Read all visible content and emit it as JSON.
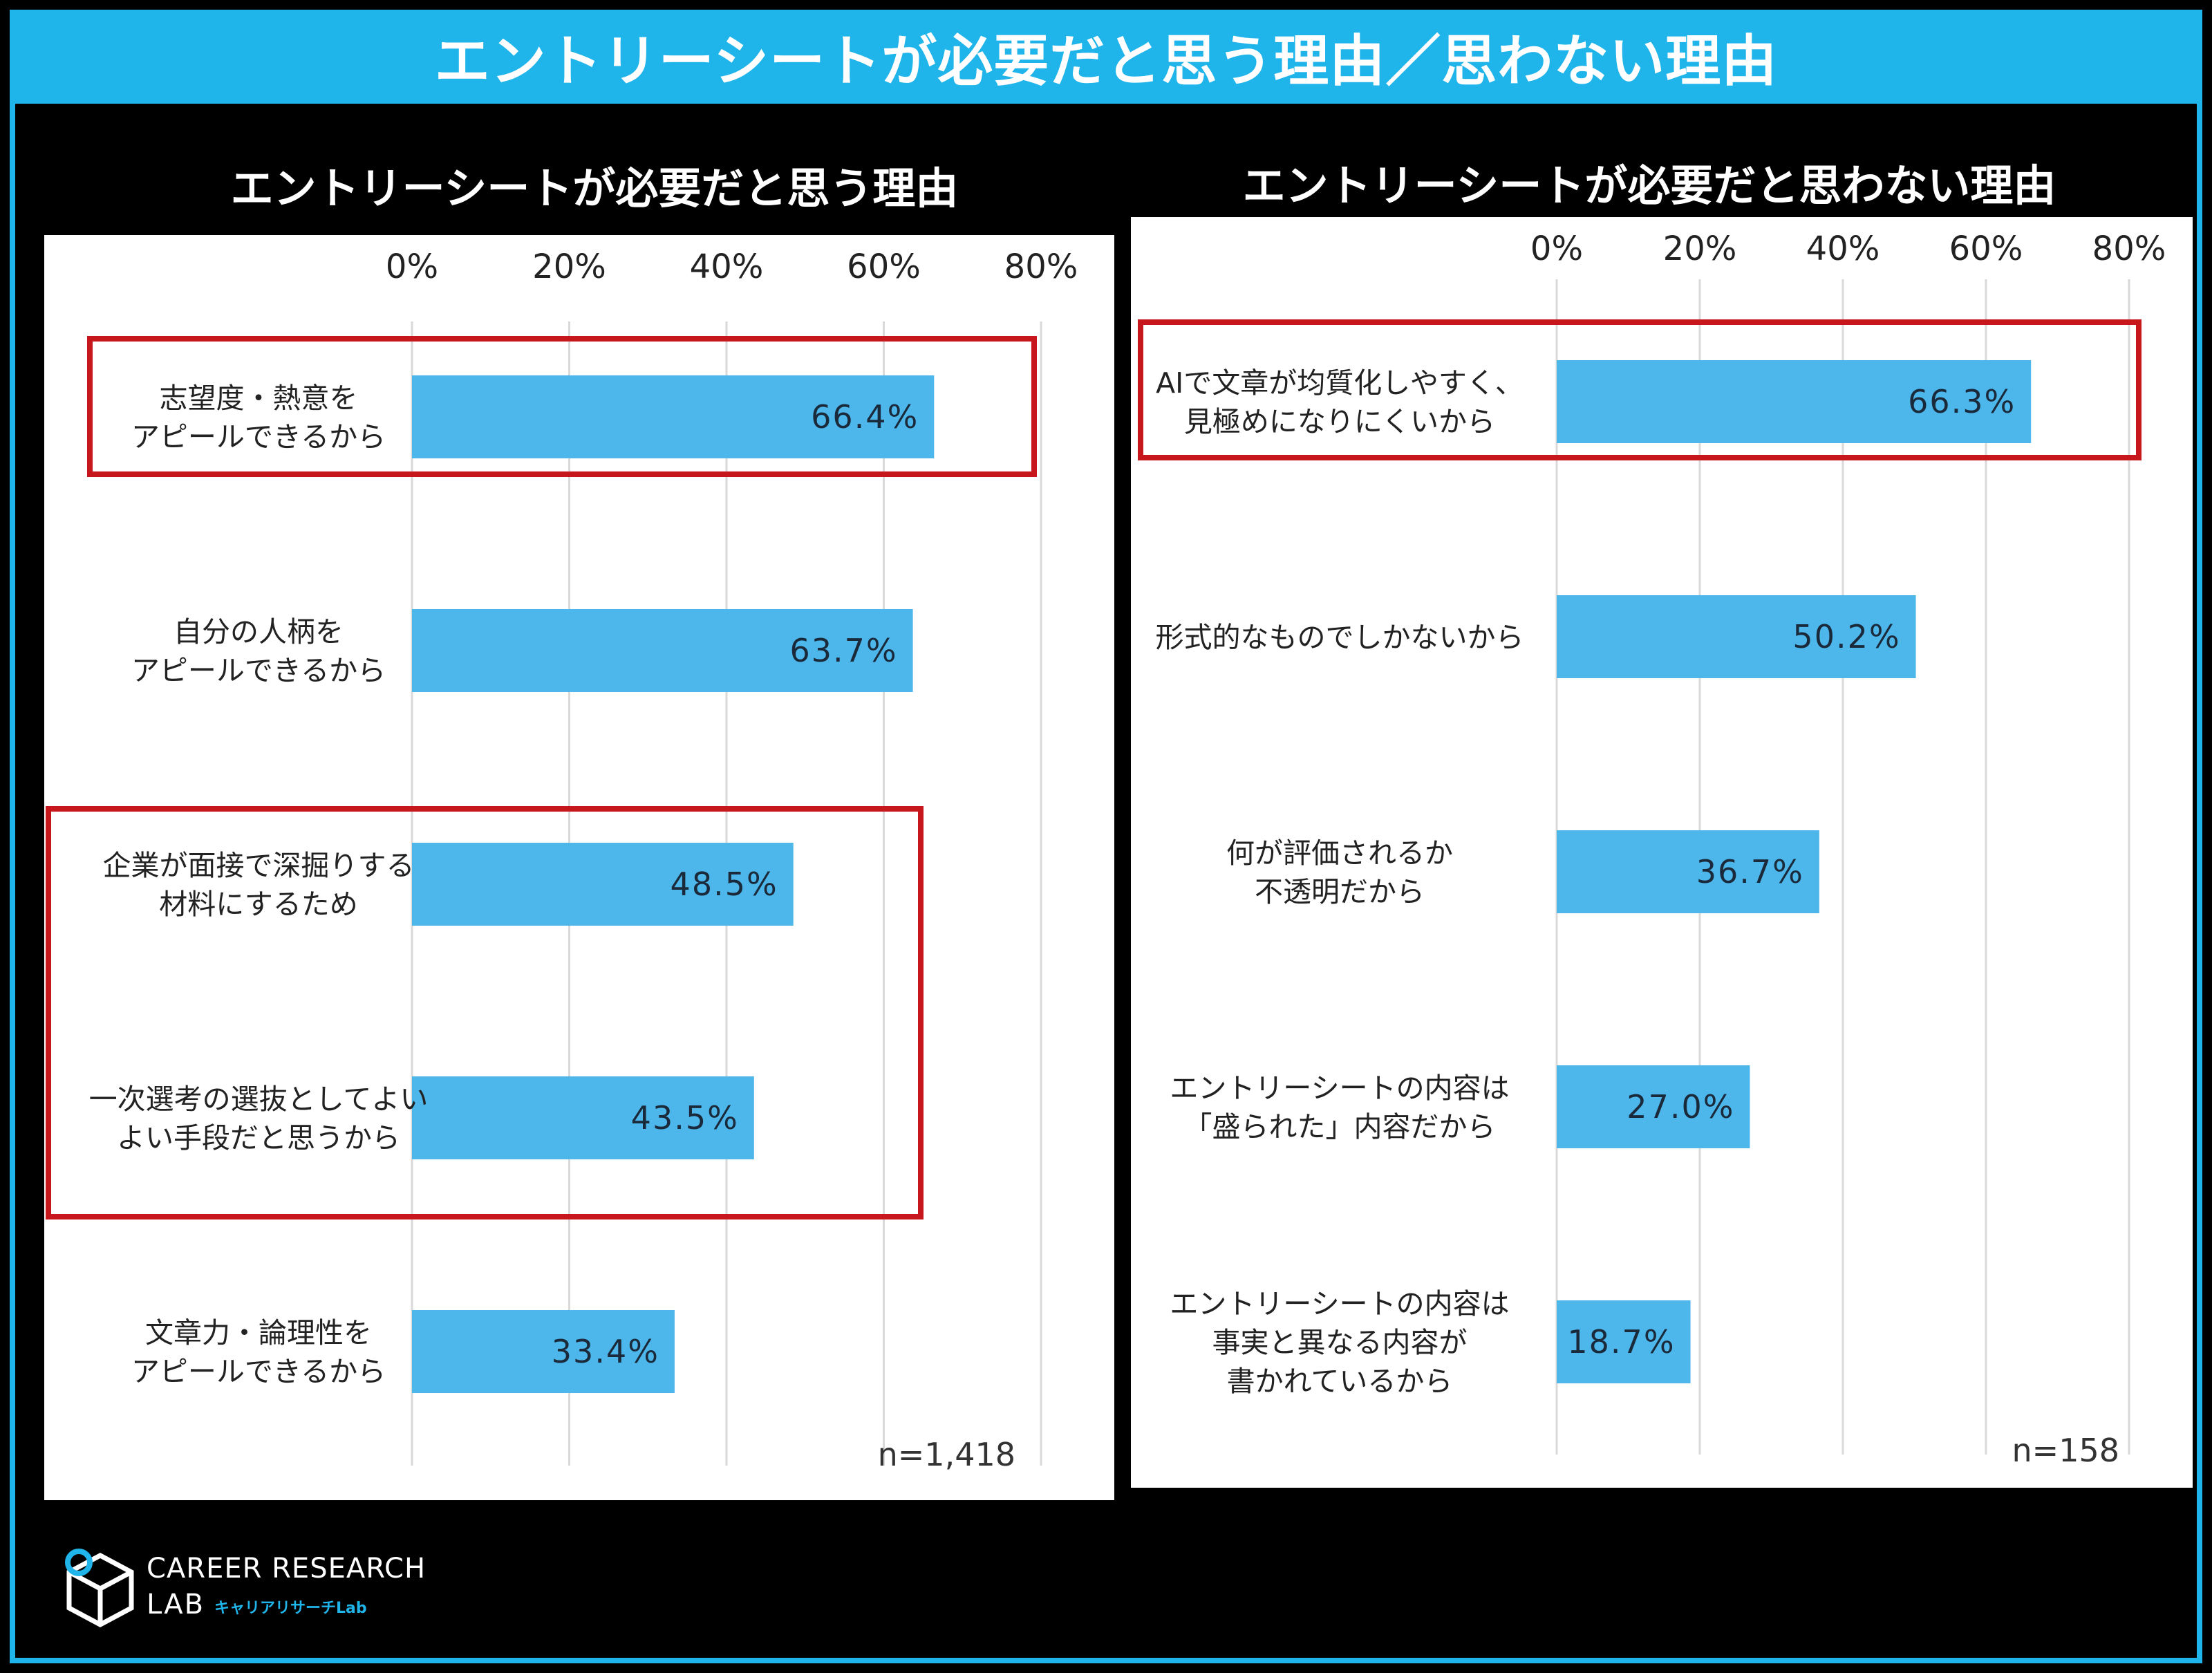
{
  "page": {
    "title": "エントリーシートが必要だと思う理由／思わない理由",
    "logo": {
      "line1": "CAREER RESEARCH",
      "line2": "LAB",
      "sub": "キャリアリサーチLab"
    }
  },
  "colors": {
    "accent": "#1fb4ea",
    "bar": "#4db6ea",
    "highlight": "#c8161d",
    "grid": "#d9d9d9"
  },
  "chart_data": [
    {
      "type": "bar",
      "orientation": "horizontal",
      "title": "エントリーシートが必要だと思う理由",
      "categories": [
        "志望度・熱意を\nアピールできるから",
        "自分の人柄を\nアピールできるから",
        "企業が面接で深掘りする\n材料にするため",
        "一次選考の選抜としてよい\nよい手段だと思うから",
        "文章力・論理性を\nアピールできるから"
      ],
      "values": [
        66.4,
        63.7,
        48.5,
        43.5,
        33.4
      ],
      "value_labels": [
        "66.4%",
        "63.7%",
        "48.5%",
        "43.5%",
        "33.4%"
      ],
      "xlim": [
        0,
        80
      ],
      "ticks": [
        "0%",
        "20%",
        "40%",
        "60%",
        "80%"
      ],
      "note": "n=1,418",
      "highlighted": [
        [
          0
        ],
        [
          2,
          3
        ]
      ]
    },
    {
      "type": "bar",
      "orientation": "horizontal",
      "title": "エントリーシートが必要だと思わない理由",
      "categories": [
        "AIで文章が均質化しやすく、\n見極めになりにくいから",
        "形式的なものでしかないから",
        "何が評価されるか\n不透明だから",
        "エントリーシートの内容は\n「盛られた」内容だから",
        "エントリーシートの内容は\n事実と異なる内容が\n書かれているから"
      ],
      "values": [
        66.3,
        50.2,
        36.7,
        27.0,
        18.7
      ],
      "value_labels": [
        "66.3%",
        "50.2%",
        "36.7%",
        "27.0%",
        "18.7%"
      ],
      "xlim": [
        0,
        80
      ],
      "ticks": [
        "0%",
        "20%",
        "40%",
        "60%",
        "80%"
      ],
      "note": "n=158",
      "highlighted": [
        [
          0
        ]
      ]
    }
  ]
}
